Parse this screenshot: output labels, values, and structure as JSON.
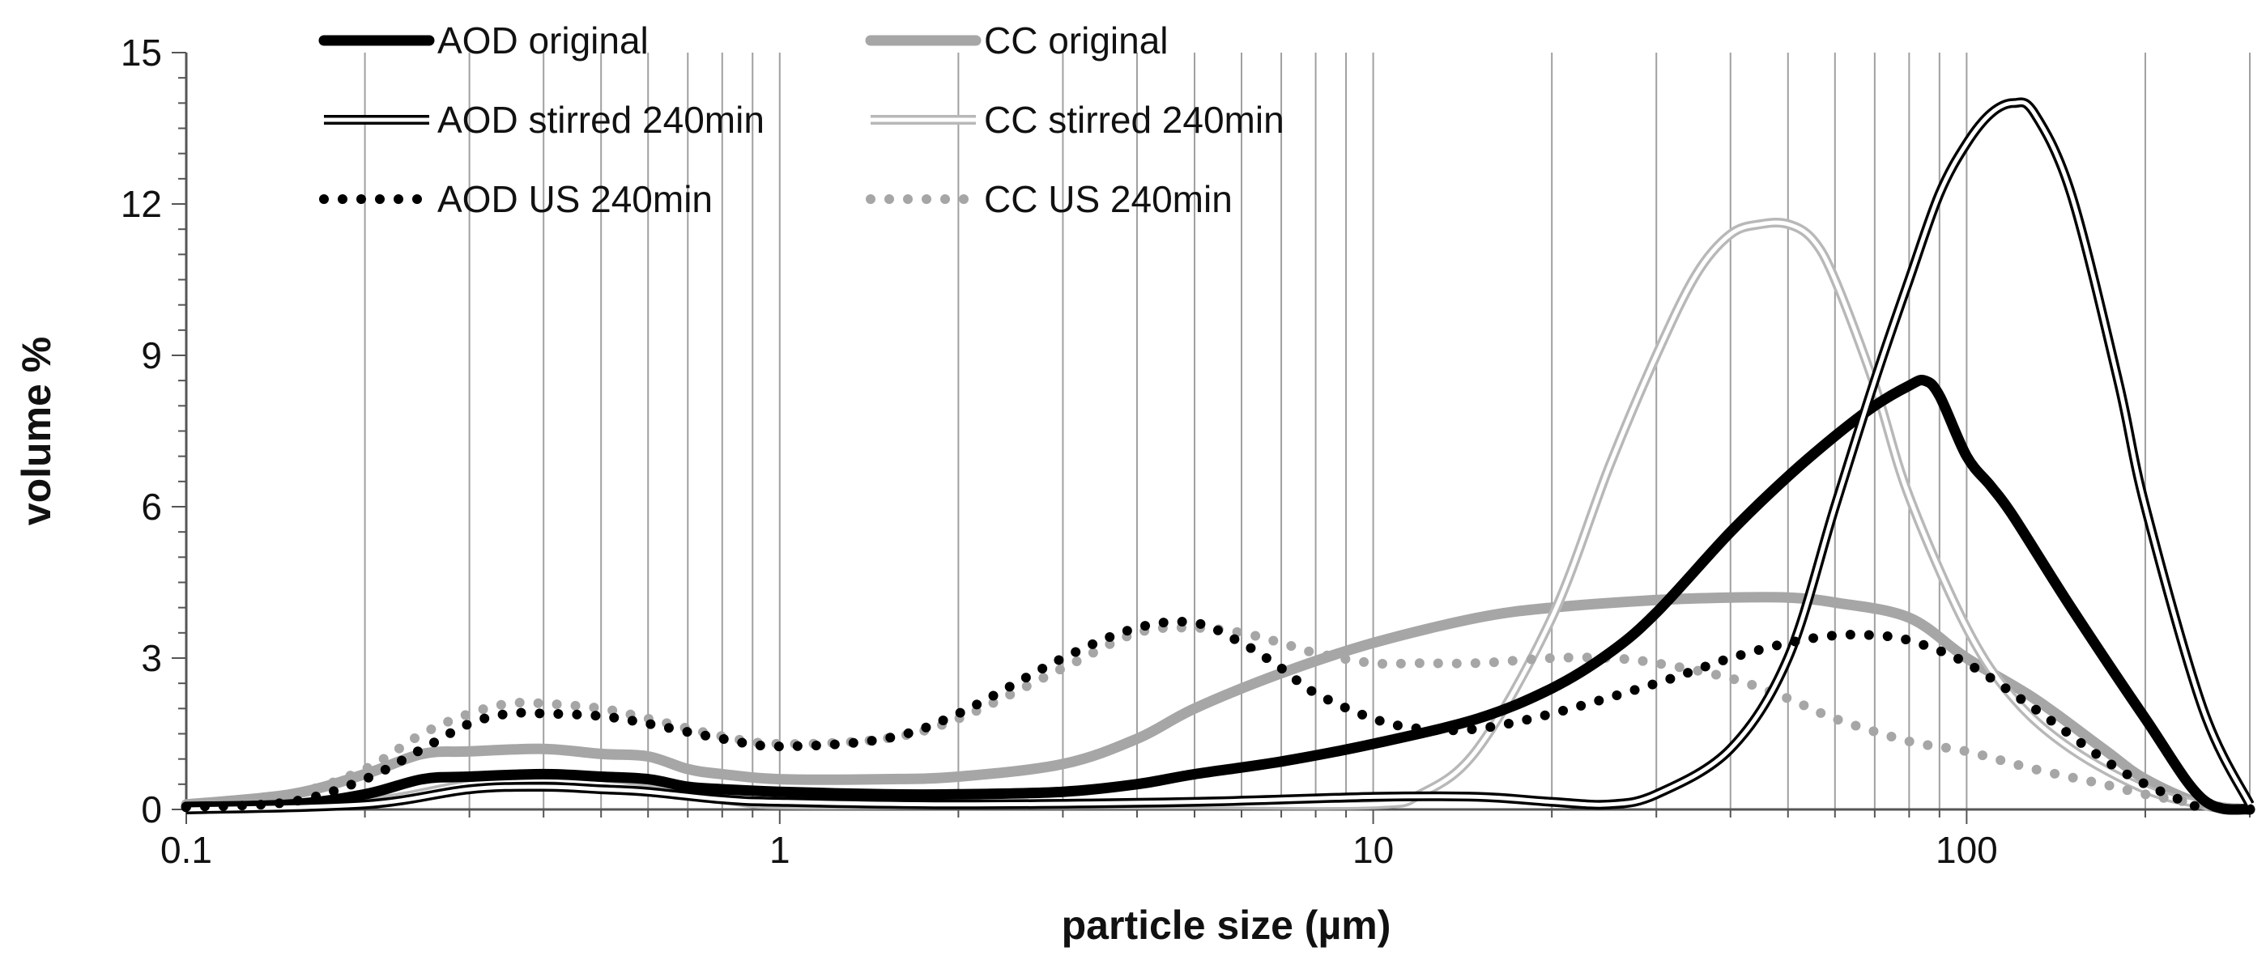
{
  "chart_data": {
    "type": "line",
    "xscale": "log",
    "xlabel": "particle size (µm)",
    "ylabel": "volume %",
    "xlim": [
      0.1,
      300
    ],
    "ylim": [
      0,
      15
    ],
    "xticks": [
      0.1,
      1,
      10,
      100
    ],
    "xtick_labels": [
      "0.1",
      "1",
      "10",
      "100"
    ],
    "yticks": [
      0,
      3,
      6,
      9,
      12,
      15
    ],
    "ytick_labels": [
      "0",
      "3",
      "6",
      "9",
      "12",
      "15"
    ],
    "grid": "vertical log gridlines",
    "legend_position": "top-left, two columns",
    "series": [
      {
        "name": "AOD original",
        "color": "#000000",
        "style": "thick-solid",
        "x": [
          0.1,
          0.15,
          0.2,
          0.25,
          0.3,
          0.4,
          0.5,
          0.6,
          0.7,
          0.8,
          1,
          1.5,
          2,
          3,
          4,
          5,
          7,
          10,
          15,
          20,
          25,
          30,
          40,
          50,
          60,
          70,
          80,
          85,
          90,
          100,
          110,
          120,
          150,
          200,
          250,
          300
        ],
        "y": [
          0.05,
          0.1,
          0.3,
          0.6,
          0.65,
          0.7,
          0.65,
          0.6,
          0.45,
          0.4,
          0.35,
          0.3,
          0.3,
          0.35,
          0.5,
          0.7,
          0.95,
          1.3,
          1.8,
          2.4,
          3.1,
          3.9,
          5.5,
          6.6,
          7.4,
          8.0,
          8.4,
          8.5,
          8.2,
          7.0,
          6.4,
          5.8,
          4.0,
          1.8,
          0.2,
          0.0
        ]
      },
      {
        "name": "CC original",
        "color": "#a6a6a6",
        "style": "thick-solid",
        "x": [
          0.1,
          0.15,
          0.2,
          0.25,
          0.3,
          0.4,
          0.5,
          0.6,
          0.7,
          0.8,
          1,
          1.5,
          2,
          3,
          4,
          5,
          7,
          10,
          15,
          20,
          30,
          40,
          50,
          60,
          80,
          100,
          130,
          170,
          200,
          250,
          300
        ],
        "y": [
          0.1,
          0.3,
          0.7,
          1.1,
          1.15,
          1.2,
          1.1,
          1.05,
          0.8,
          0.7,
          0.6,
          0.6,
          0.65,
          0.9,
          1.4,
          2.0,
          2.7,
          3.3,
          3.8,
          4.0,
          4.15,
          4.2,
          4.2,
          4.1,
          3.8,
          3.0,
          2.2,
          1.2,
          0.6,
          0.1,
          0.0
        ]
      },
      {
        "name": "AOD stirred 240min",
        "color": "#000000",
        "style": "double",
        "x": [
          0.1,
          0.2,
          0.3,
          0.4,
          0.5,
          0.6,
          0.8,
          1,
          2,
          5,
          10,
          15,
          20,
          25,
          30,
          40,
          50,
          60,
          70,
          80,
          90,
          100,
          110,
          120,
          130,
          150,
          180,
          200,
          250,
          300
        ],
        "y": [
          0.0,
          0.1,
          0.4,
          0.45,
          0.4,
          0.35,
          0.2,
          0.15,
          0.1,
          0.15,
          0.25,
          0.25,
          0.15,
          0.1,
          0.3,
          1.2,
          3.0,
          6.0,
          8.5,
          10.5,
          12.2,
          13.2,
          13.8,
          14.0,
          13.8,
          12.2,
          8.5,
          6.0,
          2.0,
          0.1
        ]
      },
      {
        "name": "CC stirred 240min",
        "color": "#b8b8b8",
        "style": "double",
        "x": [
          0.1,
          0.2,
          0.3,
          0.4,
          0.5,
          0.6,
          0.8,
          1,
          2,
          5,
          10,
          12,
          15,
          20,
          25,
          30,
          35,
          40,
          45,
          50,
          55,
          60,
          70,
          80,
          100,
          120,
          150,
          200,
          250,
          300
        ],
        "y": [
          0.0,
          0.15,
          0.5,
          0.6,
          0.5,
          0.4,
          0.2,
          0.1,
          0.1,
          0.1,
          0.1,
          0.3,
          1.2,
          3.8,
          6.8,
          9.0,
          10.6,
          11.4,
          11.6,
          11.6,
          11.3,
          10.5,
          8.4,
          6.2,
          3.6,
          2.2,
          1.2,
          0.4,
          0.1,
          0.0
        ]
      },
      {
        "name": "AOD US 240min",
        "color": "#000000",
        "style": "dotted",
        "x": [
          0.1,
          0.15,
          0.2,
          0.25,
          0.3,
          0.35,
          0.4,
          0.5,
          0.6,
          0.8,
          1,
          1.5,
          2,
          3,
          4,
          5,
          6,
          7,
          8,
          10,
          12,
          15,
          20,
          30,
          40,
          50,
          60,
          70,
          80,
          100,
          130,
          170,
          200,
          250
        ],
        "y": [
          0.05,
          0.15,
          0.6,
          1.2,
          1.7,
          1.9,
          1.9,
          1.85,
          1.7,
          1.4,
          1.25,
          1.4,
          1.9,
          3.0,
          3.6,
          3.7,
          3.3,
          2.8,
          2.3,
          1.8,
          1.6,
          1.6,
          1.9,
          2.5,
          3.0,
          3.3,
          3.45,
          3.45,
          3.35,
          2.9,
          2.0,
          1.0,
          0.5,
          0.0
        ]
      },
      {
        "name": "CC US 240min",
        "color": "#a6a6a6",
        "style": "dotted",
        "x": [
          0.1,
          0.15,
          0.2,
          0.25,
          0.3,
          0.35,
          0.4,
          0.5,
          0.6,
          0.8,
          1,
          1.5,
          2,
          3,
          4,
          5,
          6,
          7,
          8,
          10,
          12,
          15,
          20,
          25,
          30,
          40,
          50,
          60,
          80,
          100,
          130,
          170,
          200,
          250,
          300
        ],
        "y": [
          0.1,
          0.3,
          0.8,
          1.5,
          1.9,
          2.1,
          2.1,
          2.0,
          1.8,
          1.45,
          1.3,
          1.4,
          1.8,
          2.8,
          3.5,
          3.6,
          3.5,
          3.3,
          3.1,
          2.9,
          2.9,
          2.9,
          3.0,
          3.0,
          2.9,
          2.6,
          2.2,
          1.8,
          1.35,
          1.15,
          0.8,
          0.5,
          0.3,
          0.1,
          0.0
        ]
      }
    ]
  }
}
